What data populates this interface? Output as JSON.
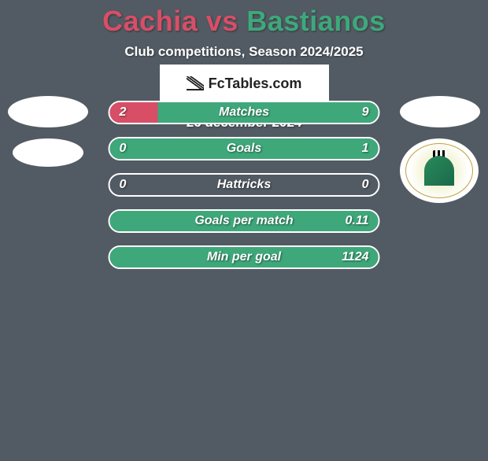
{
  "title": {
    "player1": "Cachia",
    "vs": " vs ",
    "player2": "Bastianos",
    "player1_color": "#d84e66",
    "player2_color": "#3ea87a"
  },
  "subtitle": "Club competitions, Season 2024/2025",
  "date": "26 december 2024",
  "brand": "FcTables.com",
  "colors": {
    "left": "#d84e66",
    "right": "#3ea87a",
    "background": "#525a63",
    "bar_border": "#ffffff"
  },
  "stats": [
    {
      "label": "Matches",
      "left_val": "2",
      "right_val": "9",
      "left_pct": 18,
      "right_pct": 82
    },
    {
      "label": "Goals",
      "left_val": "0",
      "right_val": "1",
      "left_pct": 0,
      "right_pct": 100
    },
    {
      "label": "Hattricks",
      "left_val": "0",
      "right_val": "0",
      "left_pct": 0,
      "right_pct": 0
    },
    {
      "label": "Goals per match",
      "left_val": "",
      "right_val": "0.11",
      "left_pct": 0,
      "right_pct": 100
    },
    {
      "label": "Min per goal",
      "left_val": "",
      "right_val": "1124",
      "left_pct": 0,
      "right_pct": 100
    }
  ]
}
